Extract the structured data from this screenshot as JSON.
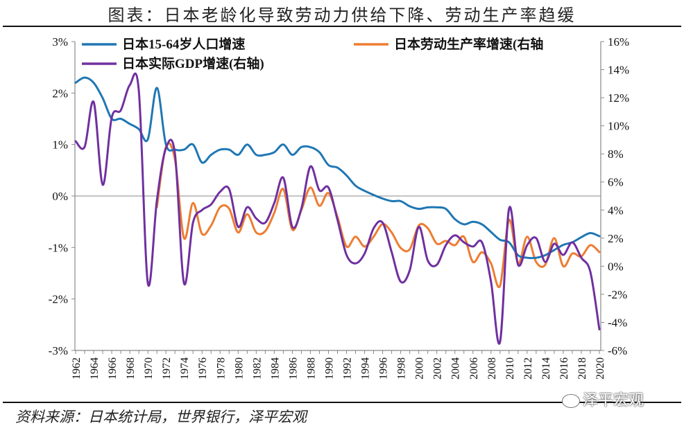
{
  "title": "图表：日本老龄化导致劳动力供给下降、劳动生产率趋缓",
  "source": "资料来源：日本统计局，世界银行，泽平宏观",
  "watermark": "泽平宏观",
  "chart_data": {
    "type": "line",
    "x": [
      1962,
      1963,
      1964,
      1965,
      1966,
      1967,
      1968,
      1969,
      1970,
      1971,
      1972,
      1973,
      1974,
      1975,
      1976,
      1977,
      1978,
      1979,
      1980,
      1981,
      1982,
      1983,
      1984,
      1985,
      1986,
      1987,
      1988,
      1989,
      1990,
      1991,
      1992,
      1993,
      1994,
      1995,
      1996,
      1997,
      1998,
      1999,
      2000,
      2001,
      2002,
      2003,
      2004,
      2005,
      2006,
      2007,
      2008,
      2009,
      2010,
      2011,
      2012,
      2013,
      2014,
      2015,
      2016,
      2017,
      2018,
      2019,
      2020
    ],
    "x_ticks": [
      "1962",
      "1964",
      "1966",
      "1968",
      "1970",
      "1972",
      "1974",
      "1976",
      "1978",
      "1980",
      "1982",
      "1984",
      "1986",
      "1988",
      "1990",
      "1992",
      "1994",
      "1996",
      "1998",
      "2000",
      "2002",
      "2004",
      "2006",
      "2008",
      "2010",
      "2012",
      "2014",
      "2016",
      "2018",
      "2020"
    ],
    "y_left": {
      "range": [
        -3,
        3
      ],
      "ticks": [
        "-3%",
        "-2%",
        "-1%",
        "0%",
        "1%",
        "2%",
        "3%"
      ]
    },
    "y_right": {
      "range": [
        -6,
        16
      ],
      "ticks": [
        "-6%",
        "-4%",
        "-2%",
        "0%",
        "2%",
        "4%",
        "6%",
        "8%",
        "10%",
        "12%",
        "14%",
        "16%"
      ]
    },
    "legend": [
      "日本15-64岁人口增速",
      "日本劳动生产率增速(右轴",
      "日本实际GDP增速(右轴)"
    ],
    "series": [
      {
        "name": "日本15-64岁人口增速",
        "axis": "left",
        "color": "#1f77b4",
        "values": [
          2.2,
          2.3,
          2.2,
          1.9,
          1.5,
          1.5,
          1.4,
          1.3,
          1.1,
          2.1,
          1.0,
          0.9,
          0.9,
          1.0,
          0.65,
          0.8,
          0.9,
          0.9,
          0.8,
          1.0,
          0.8,
          0.8,
          0.85,
          1.0,
          0.8,
          0.95,
          0.95,
          0.85,
          0.6,
          0.55,
          0.4,
          0.2,
          0.1,
          0.02,
          -0.05,
          -0.1,
          -0.1,
          -0.2,
          -0.25,
          -0.22,
          -0.22,
          -0.25,
          -0.45,
          -0.55,
          -0.5,
          -0.55,
          -0.7,
          -0.85,
          -0.9,
          -1.15,
          -1.2,
          -1.2,
          -1.15,
          -1.05,
          -0.95,
          -0.9,
          -0.8,
          -0.72,
          -0.78
        ]
      },
      {
        "name": "日本劳动生产率增速(右轴",
        "axis": "right",
        "color": "#ed7d31",
        "values": [
          null,
          null,
          null,
          null,
          null,
          null,
          null,
          null,
          null,
          4.2,
          8.5,
          7.6,
          2.0,
          4.5,
          2.3,
          2.9,
          4.2,
          4.1,
          2.4,
          3.7,
          2.4,
          2.5,
          3.8,
          5.5,
          2.6,
          4.0,
          5.6,
          4.3,
          5.2,
          3.5,
          1.4,
          2.1,
          1.4,
          2.1,
          3.0,
          2.4,
          1.3,
          1.2,
          2.9,
          2.7,
          1.6,
          1.8,
          1.5,
          2.1,
          0.3,
          1.0,
          0.2,
          -1.4,
          3.3,
          0.2,
          2.1,
          0.3,
          0.1,
          2.0,
          0.0,
          0.9,
          0.7,
          1.5,
          1.0
        ]
      },
      {
        "name": "日本实际GDP增速(右轴)",
        "axis": "right",
        "color": "#7030a0",
        "values": [
          8.9,
          8.5,
          11.7,
          5.8,
          10.6,
          11.1,
          12.9,
          12.5,
          -1.2,
          4.7,
          8.4,
          8.0,
          -1.2,
          3.1,
          4.0,
          4.4,
          5.3,
          5.5,
          2.8,
          4.2,
          3.4,
          3.1,
          4.5,
          6.3,
          2.8,
          4.1,
          7.1,
          5.4,
          5.6,
          3.3,
          0.8,
          0.2,
          0.9,
          2.7,
          3.1,
          1.0,
          -1.1,
          -0.3,
          2.8,
          0.4,
          0.1,
          1.5,
          2.2,
          1.7,
          1.4,
          1.7,
          -1.1,
          -5.4,
          4.1,
          0.1,
          1.5,
          2.0,
          0.3,
          1.6,
          0.8,
          1.7,
          0.6,
          -0.4,
          -4.5
        ]
      }
    ]
  }
}
